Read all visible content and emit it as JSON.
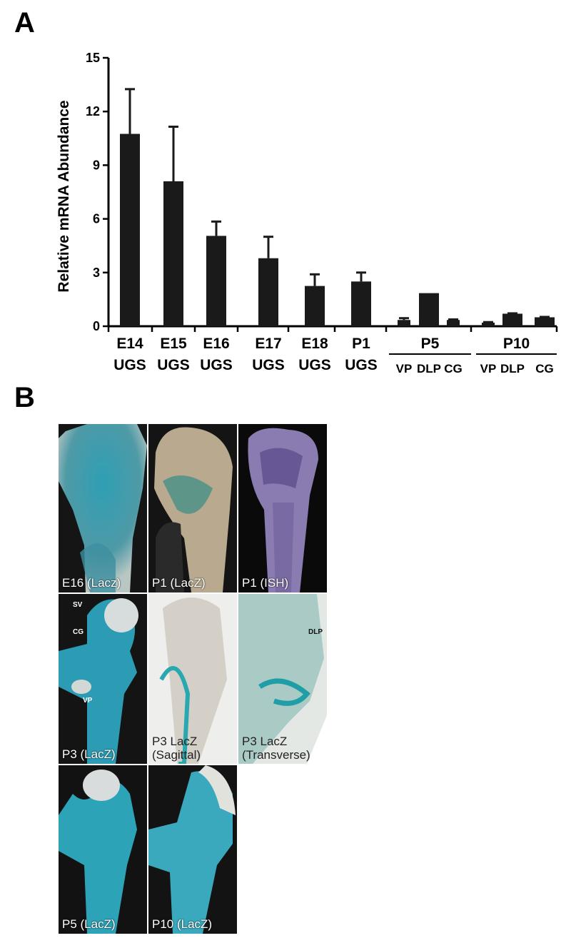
{
  "panels": {
    "a": "A",
    "b": "B"
  },
  "chart_data": {
    "type": "bar",
    "ylabel": "Relative mRNA Abundance",
    "ylim": [
      0,
      15
    ],
    "yticks": [
      0,
      3,
      6,
      9,
      12,
      15
    ],
    "bar_color": "#1a1a1a",
    "bars": [
      {
        "value": 10.75,
        "error": 2.5
      },
      {
        "value": 8.1,
        "error": 3.05
      },
      {
        "value": 5.05,
        "error": 0.8
      },
      {
        "value": 3.8,
        "error": 1.2
      },
      {
        "value": 2.25,
        "error": 0.65
      },
      {
        "value": 2.5,
        "error": 0.5
      },
      {
        "value": 0.35,
        "error": 0.1
      },
      {
        "value": 1.85,
        "error": 0
      },
      {
        "value": 0.35,
        "error": 0.03
      },
      {
        "value": 0.2,
        "error": 0.03
      },
      {
        "value": 0.7,
        "error": 0.02
      },
      {
        "value": 0.5,
        "error": 0.02
      }
    ],
    "single_labels": [
      {
        "top": "E14",
        "bottom": "UGS"
      },
      {
        "top": "E15",
        "bottom": "UGS"
      },
      {
        "top": "E16",
        "bottom": "UGS"
      },
      {
        "top": "E17",
        "bottom": "UGS"
      },
      {
        "top": "E18",
        "bottom": "UGS"
      },
      {
        "top": "P1",
        "bottom": "UGS"
      }
    ],
    "groups": [
      {
        "label": "P5",
        "sub": [
          "VP",
          "DLP",
          "CG"
        ]
      },
      {
        "label": "P10",
        "sub": [
          "VP",
          "DLP",
          "CG"
        ]
      }
    ]
  },
  "images": [
    {
      "caption": "E16 (Lacz)"
    },
    {
      "caption": "P1 (LacZ)"
    },
    {
      "caption": "P1 (ISH)"
    },
    {
      "caption": "P3 (LacZ)",
      "annotations": [
        "SV",
        "CG",
        "VP"
      ]
    },
    {
      "caption": "P3 LacZ",
      "caption2": "(Sagittal)"
    },
    {
      "caption": "P3 LacZ",
      "caption2": "(Transverse)",
      "annotations": [
        "DLP"
      ]
    },
    {
      "caption": "P5 (LacZ)"
    },
    {
      "caption": "P10 (LacZ)"
    }
  ]
}
